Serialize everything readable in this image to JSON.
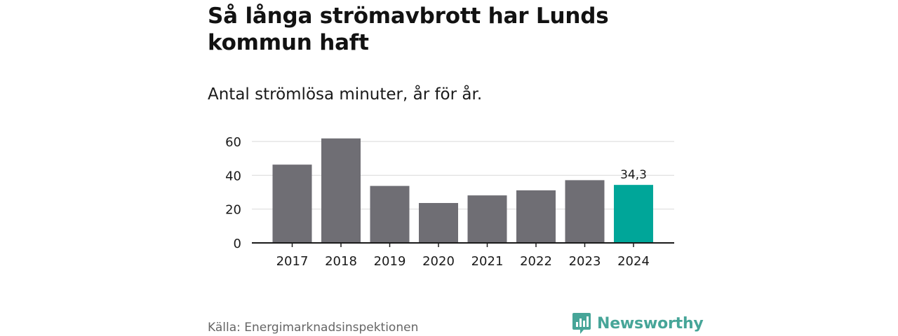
{
  "title": "Så långa strömavbrott har Lunds kommun haft",
  "subtitle": "Antal strömlösa minuter, år för år.",
  "source": "Källa: Energimarknadsinspektionen",
  "brand": {
    "name": "Newsworthy",
    "icon": "newsworthy-logo-icon",
    "color": "#46a598"
  },
  "chart_data": {
    "type": "bar",
    "categories": [
      "2017",
      "2018",
      "2019",
      "2020",
      "2021",
      "2022",
      "2023",
      "2024"
    ],
    "values": [
      46.3,
      61.8,
      33.7,
      23.6,
      28.1,
      31.1,
      37.1,
      34.3
    ],
    "data_labels": [
      null,
      null,
      null,
      null,
      null,
      null,
      null,
      "34,3"
    ],
    "ylim": [
      0,
      65
    ],
    "yticks": [
      0,
      20,
      40,
      60
    ],
    "grid": true,
    "bar_color": "#6f6e74",
    "highlight_color": "#00a699",
    "highlight_index": 7,
    "xlabel": "",
    "ylabel": ""
  }
}
